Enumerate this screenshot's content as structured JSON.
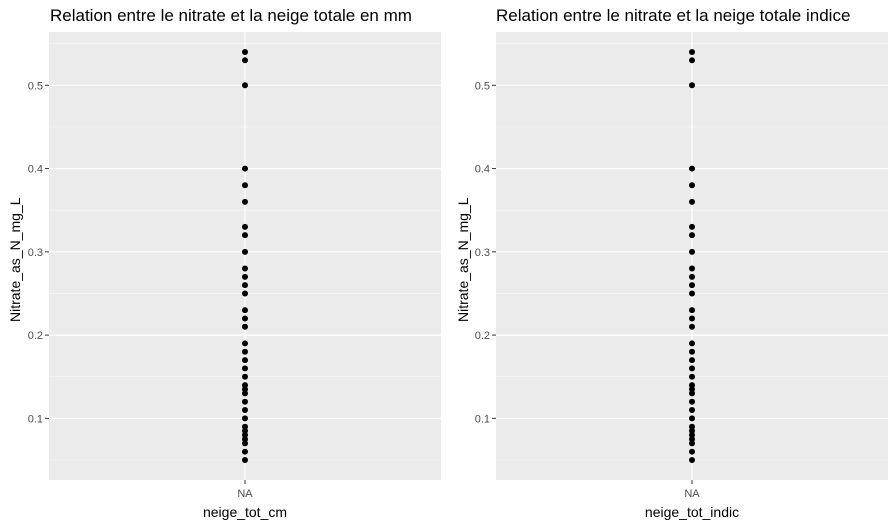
{
  "chart_data": [
    {
      "type": "scatter",
      "title": "Relation entre le nitrate et la neige totale en mm",
      "xlabel": "neige_tot_cm",
      "ylabel": "Nitrate_as_N_mg_L",
      "categories": [
        "NA"
      ],
      "y_ticks": [
        0.1,
        0.2,
        0.3,
        0.4,
        0.5
      ],
      "ylim": [
        0.026,
        0.564
      ],
      "grid": true,
      "points": [
        {
          "x": "NA",
          "y": 0.54
        },
        {
          "x": "NA",
          "y": 0.53
        },
        {
          "x": "NA",
          "y": 0.5
        },
        {
          "x": "NA",
          "y": 0.4
        },
        {
          "x": "NA",
          "y": 0.38
        },
        {
          "x": "NA",
          "y": 0.36
        },
        {
          "x": "NA",
          "y": 0.33
        },
        {
          "x": "NA",
          "y": 0.32
        },
        {
          "x": "NA",
          "y": 0.3
        },
        {
          "x": "NA",
          "y": 0.28
        },
        {
          "x": "NA",
          "y": 0.27
        },
        {
          "x": "NA",
          "y": 0.26
        },
        {
          "x": "NA",
          "y": 0.25
        },
        {
          "x": "NA",
          "y": 0.23
        },
        {
          "x": "NA",
          "y": 0.22
        },
        {
          "x": "NA",
          "y": 0.21
        },
        {
          "x": "NA",
          "y": 0.19
        },
        {
          "x": "NA",
          "y": 0.18
        },
        {
          "x": "NA",
          "y": 0.17
        },
        {
          "x": "NA",
          "y": 0.16
        },
        {
          "x": "NA",
          "y": 0.15
        },
        {
          "x": "NA",
          "y": 0.14
        },
        {
          "x": "NA",
          "y": 0.135
        },
        {
          "x": "NA",
          "y": 0.13
        },
        {
          "x": "NA",
          "y": 0.12
        },
        {
          "x": "NA",
          "y": 0.11
        },
        {
          "x": "NA",
          "y": 0.1
        },
        {
          "x": "NA",
          "y": 0.09
        },
        {
          "x": "NA",
          "y": 0.085
        },
        {
          "x": "NA",
          "y": 0.08
        },
        {
          "x": "NA",
          "y": 0.075
        },
        {
          "x": "NA",
          "y": 0.07
        },
        {
          "x": "NA",
          "y": 0.06
        },
        {
          "x": "NA",
          "y": 0.05
        }
      ]
    },
    {
      "type": "scatter",
      "title": "Relation entre le nitrate et la neige totale indice",
      "xlabel": "neige_tot_indic",
      "ylabel": "Nitrate_as_N_mg_L",
      "categories": [
        "NA"
      ],
      "y_ticks": [
        0.1,
        0.2,
        0.3,
        0.4,
        0.5
      ],
      "ylim": [
        0.026,
        0.564
      ],
      "grid": true,
      "points": [
        {
          "x": "NA",
          "y": 0.54
        },
        {
          "x": "NA",
          "y": 0.53
        },
        {
          "x": "NA",
          "y": 0.5
        },
        {
          "x": "NA",
          "y": 0.4
        },
        {
          "x": "NA",
          "y": 0.38
        },
        {
          "x": "NA",
          "y": 0.36
        },
        {
          "x": "NA",
          "y": 0.33
        },
        {
          "x": "NA",
          "y": 0.32
        },
        {
          "x": "NA",
          "y": 0.3
        },
        {
          "x": "NA",
          "y": 0.28
        },
        {
          "x": "NA",
          "y": 0.27
        },
        {
          "x": "NA",
          "y": 0.26
        },
        {
          "x": "NA",
          "y": 0.25
        },
        {
          "x": "NA",
          "y": 0.23
        },
        {
          "x": "NA",
          "y": 0.22
        },
        {
          "x": "NA",
          "y": 0.21
        },
        {
          "x": "NA",
          "y": 0.19
        },
        {
          "x": "NA",
          "y": 0.18
        },
        {
          "x": "NA",
          "y": 0.17
        },
        {
          "x": "NA",
          "y": 0.16
        },
        {
          "x": "NA",
          "y": 0.15
        },
        {
          "x": "NA",
          "y": 0.14
        },
        {
          "x": "NA",
          "y": 0.135
        },
        {
          "x": "NA",
          "y": 0.13
        },
        {
          "x": "NA",
          "y": 0.12
        },
        {
          "x": "NA",
          "y": 0.11
        },
        {
          "x": "NA",
          "y": 0.1
        },
        {
          "x": "NA",
          "y": 0.09
        },
        {
          "x": "NA",
          "y": 0.085
        },
        {
          "x": "NA",
          "y": 0.08
        },
        {
          "x": "NA",
          "y": 0.075
        },
        {
          "x": "NA",
          "y": 0.07
        },
        {
          "x": "NA",
          "y": 0.06
        },
        {
          "x": "NA",
          "y": 0.05
        }
      ]
    }
  ],
  "colors": {
    "panel_background": "#ebebeb",
    "grid_major": "#ffffff",
    "point": "#000000",
    "tick_text": "#4d4d4d"
  }
}
